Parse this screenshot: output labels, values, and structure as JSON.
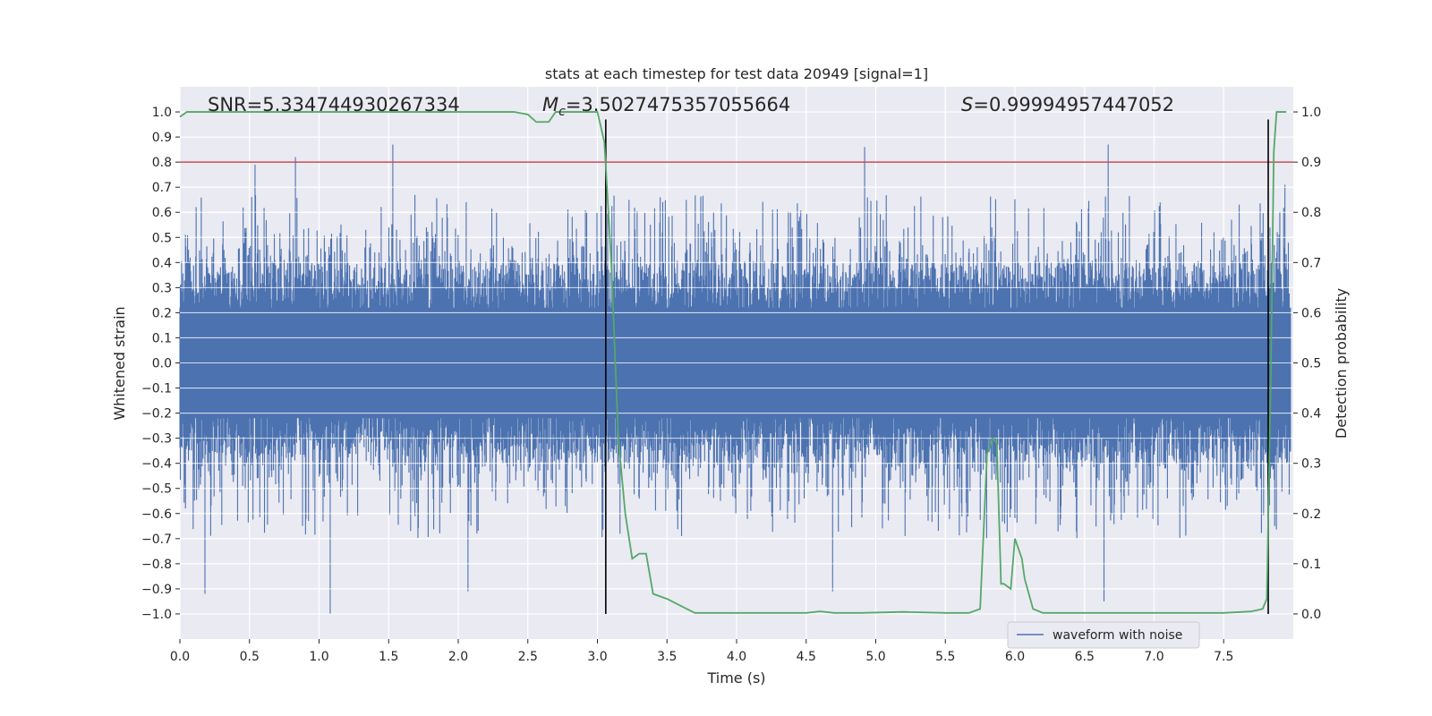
{
  "chart_data": {
    "type": "line",
    "title": "stats at each timestep for test data 20949 [signal=1]",
    "xlabel": "Time (s)",
    "ylabel_left": "Whitened strain",
    "ylabel_right": "Detection probability",
    "xlim": [
      0.0,
      8.0
    ],
    "ylim_left": [
      -1.1,
      1.1
    ],
    "ylim_right": [
      -0.05,
      1.05
    ],
    "x_ticks": [
      "0.0",
      "0.5",
      "1.0",
      "1.5",
      "2.0",
      "2.5",
      "3.0",
      "3.5",
      "4.0",
      "4.5",
      "5.0",
      "5.5",
      "6.0",
      "6.5",
      "7.0",
      "7.5"
    ],
    "x_tick_values": [
      0.0,
      0.5,
      1.0,
      1.5,
      2.0,
      2.5,
      3.0,
      3.5,
      4.0,
      4.5,
      5.0,
      5.5,
      6.0,
      6.5,
      7.0,
      7.5
    ],
    "y_left_ticks": [
      "1.0",
      "0.9",
      "0.8",
      "0.7",
      "0.6",
      "0.5",
      "0.4",
      "0.3",
      "0.2",
      "0.1",
      "0.0",
      "−0.1",
      "−0.2",
      "−0.3",
      "−0.4",
      "−0.5",
      "−0.6",
      "−0.7",
      "−0.8",
      "−0.9",
      "−1.0"
    ],
    "y_left_tick_values": [
      1.0,
      0.9,
      0.8,
      0.7,
      0.6,
      0.5,
      0.4,
      0.3,
      0.2,
      0.1,
      0.0,
      -0.1,
      -0.2,
      -0.3,
      -0.4,
      -0.5,
      -0.6,
      -0.7,
      -0.8,
      -0.9,
      -1.0
    ],
    "y_right_ticks": [
      "1.0",
      "0.9",
      "0.8",
      "0.7",
      "0.6",
      "0.5",
      "0.4",
      "0.3",
      "0.2",
      "0.1",
      "0.0"
    ],
    "y_right_tick_values": [
      1.0,
      0.9,
      0.8,
      0.7,
      0.6,
      0.5,
      0.4,
      0.3,
      0.2,
      0.1,
      0.0
    ],
    "annotations": {
      "snr": "SNR=5.334744930267334",
      "mc_symbol": "M",
      "mc_subscript": "c",
      "mc_value": "=3.5027475357055664",
      "s_symbol": "S",
      "s_value": "=0.99994957447052"
    },
    "legend": {
      "label": "waveform with noise",
      "placement": "lower-right"
    },
    "threshold_line": {
      "value": 0.9,
      "axis": "right",
      "color": "#c44e52"
    },
    "vertical_markers": [
      {
        "x": 3.06,
        "y_top": 0.985,
        "y_bottom": 0.0
      },
      {
        "x": 7.82,
        "y_top": 0.985,
        "y_bottom": 0.0
      }
    ],
    "series": [
      {
        "name": "waveform with noise",
        "axis": "left",
        "color": "#4c72b0",
        "render": "dense-noise",
        "x_range": [
          0.0,
          7.98
        ],
        "typical_amplitude": 0.45,
        "notable_peaks": [
          {
            "x": 0.54,
            "y": 0.79
          },
          {
            "x": 0.83,
            "y": 0.82
          },
          {
            "x": 1.53,
            "y": 0.87
          },
          {
            "x": 4.92,
            "y": 0.86
          },
          {
            "x": 6.67,
            "y": 0.87
          },
          {
            "x": 7.94,
            "y": 0.71
          },
          {
            "x": 0.18,
            "y": -0.92
          },
          {
            "x": 1.08,
            "y": -1.0
          },
          {
            "x": 2.07,
            "y": -0.91
          },
          {
            "x": 4.69,
            "y": -0.91
          },
          {
            "x": 6.64,
            "y": -0.95
          }
        ]
      },
      {
        "name": "detection probability",
        "axis": "right",
        "color": "#55a868",
        "x": [
          0.0,
          0.05,
          0.1,
          0.5,
          1.0,
          1.5,
          2.0,
          2.4,
          2.5,
          2.56,
          2.65,
          2.7,
          2.8,
          2.9,
          3.0,
          3.05,
          3.1,
          3.15,
          3.2,
          3.25,
          3.3,
          3.35,
          3.4,
          3.5,
          3.7,
          4.0,
          4.5,
          4.6,
          4.7,
          4.9,
          5.2,
          5.5,
          5.67,
          5.75,
          5.8,
          5.84,
          5.87,
          5.9,
          5.92,
          5.97,
          6.0,
          6.05,
          6.07,
          6.13,
          6.2,
          6.3,
          6.5,
          7.0,
          7.5,
          7.7,
          7.78,
          7.81,
          7.84,
          7.86,
          7.88,
          7.9,
          7.93,
          7.95
        ],
        "y": [
          0.99,
          1.0,
          1.0,
          1.0,
          1.0,
          1.0,
          1.0,
          1.0,
          0.995,
          0.98,
          0.98,
          1.0,
          1.0,
          1.0,
          1.0,
          0.94,
          0.7,
          0.35,
          0.2,
          0.11,
          0.12,
          0.12,
          0.04,
          0.03,
          0.002,
          0.002,
          0.002,
          0.005,
          0.002,
          0.002,
          0.004,
          0.002,
          0.002,
          0.01,
          0.32,
          0.35,
          0.34,
          0.06,
          0.06,
          0.05,
          0.15,
          0.11,
          0.07,
          0.01,
          0.002,
          0.002,
          0.002,
          0.002,
          0.002,
          0.005,
          0.01,
          0.03,
          0.5,
          0.92,
          1.0,
          1.0,
          1.0,
          1.0
        ]
      }
    ]
  }
}
